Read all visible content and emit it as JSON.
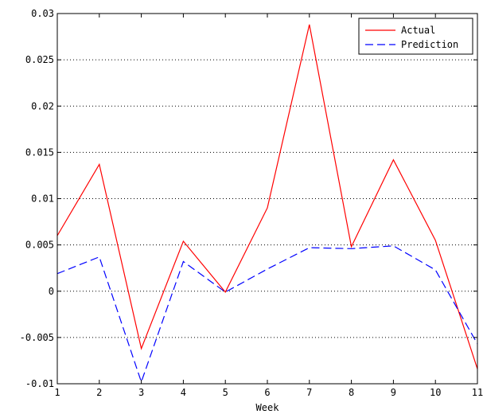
{
  "chart_data": {
    "type": "line",
    "title": "",
    "xlabel": "Week",
    "ylabel": "",
    "x": [
      1,
      2,
      3,
      4,
      5,
      6,
      7,
      8,
      9,
      10,
      11
    ],
    "xlim": [
      1,
      11
    ],
    "ylim": [
      -0.01,
      0.03
    ],
    "x_ticks": [
      1,
      2,
      3,
      4,
      5,
      6,
      7,
      8,
      9,
      10,
      11
    ],
    "y_ticks": [
      -0.01,
      -0.005,
      0,
      0.005,
      0.01,
      0.015,
      0.02,
      0.025,
      0.03
    ],
    "y_tick_labels": [
      "-0.01",
      "-0.005",
      "0",
      "0.005",
      "0.01",
      "0.015",
      "0.02",
      "0.025",
      "0.03"
    ],
    "grid": "horizontal dotted",
    "legend_position": "top-right",
    "series": [
      {
        "name": "Actual",
        "color": "#ff0000",
        "line_style": "solid",
        "values": [
          0.006,
          0.0137,
          -0.0062,
          0.0054,
          -0.0001,
          0.009,
          0.0288,
          0.0048,
          0.0142,
          0.0055,
          -0.0084
        ]
      },
      {
        "name": "Prediction",
        "color": "#0000ff",
        "line_style": "dashed",
        "values": [
          0.0019,
          0.0037,
          -0.0098,
          0.0032,
          -0.0001,
          0.0024,
          0.0047,
          0.0046,
          0.0049,
          0.0023,
          -0.0057
        ]
      }
    ]
  }
}
